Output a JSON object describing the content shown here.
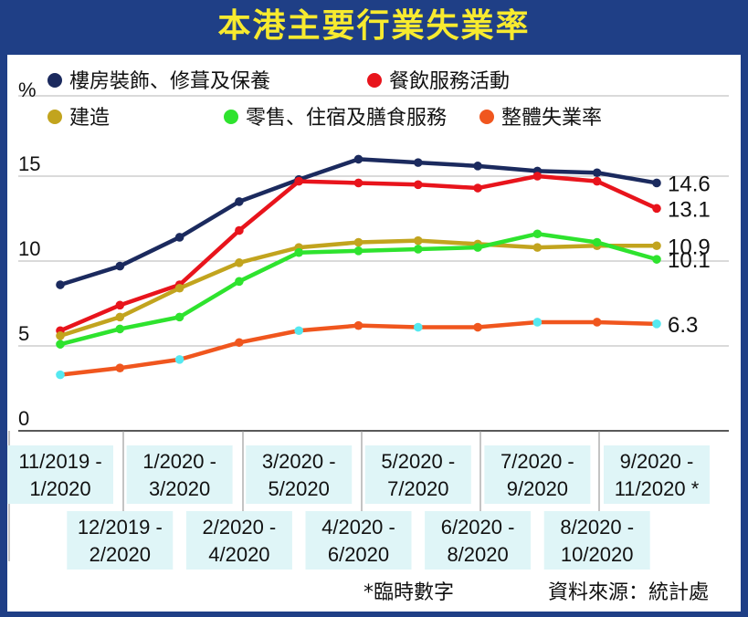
{
  "title": "本港主要行業失業率",
  "footnote": "*臨時數字",
  "source": "資料來源：統計處",
  "chart_data": {
    "type": "line",
    "ylabel": "%",
    "ylim": [
      0,
      17
    ],
    "yticks": [
      0,
      5,
      10,
      15
    ],
    "grid": "horizontal",
    "legend": "top",
    "categories": [
      [
        "11/2019 -",
        "1/2020"
      ],
      [
        "12/2019 -",
        "2/2020"
      ],
      [
        "1/2020 -",
        "3/2020"
      ],
      [
        "2/2020 -",
        "4/2020"
      ],
      [
        "3/2020 -",
        "5/2020"
      ],
      [
        "4/2020 -",
        "6/2020"
      ],
      [
        "5/2020 -",
        "7/2020"
      ],
      [
        "6/2020 -",
        "8/2020"
      ],
      [
        "7/2020 -",
        "9/2020"
      ],
      [
        "8/2020 -",
        "10/2020"
      ],
      [
        "9/2020 -",
        "11/2020 *"
      ]
    ],
    "series": [
      {
        "name": "樓房裝飾、修葺及保養",
        "color": "#1b2a5e",
        "values": [
          8.6,
          9.7,
          11.4,
          13.5,
          14.8,
          16.0,
          15.8,
          15.6,
          15.3,
          15.2,
          14.6
        ],
        "end_label": "14.6"
      },
      {
        "name": "餐飲服務活動",
        "color": "#e8141c",
        "values": [
          5.9,
          7.4,
          8.6,
          11.8,
          14.7,
          14.6,
          14.5,
          14.3,
          15.0,
          14.7,
          13.1
        ],
        "end_label": "13.1"
      },
      {
        "name": "建造",
        "color": "#c2a41e",
        "values": [
          5.6,
          6.7,
          8.4,
          9.9,
          10.8,
          11.1,
          11.2,
          11.0,
          10.8,
          10.9,
          10.9
        ],
        "end_label": "10.9"
      },
      {
        "name": "零售、住宿及膳食服務",
        "color": "#2ee32e",
        "values": [
          5.1,
          6.0,
          6.7,
          8.8,
          10.5,
          10.6,
          10.7,
          10.8,
          11.6,
          11.1,
          10.1
        ],
        "end_label": "10.1"
      },
      {
        "name": "整體失業率",
        "color": "#f0561e",
        "values": [
          3.3,
          3.7,
          4.2,
          5.2,
          5.9,
          6.2,
          6.1,
          6.1,
          6.4,
          6.4,
          6.3
        ],
        "end_label": "6.3",
        "marker_color": "#55e8f0"
      }
    ]
  }
}
